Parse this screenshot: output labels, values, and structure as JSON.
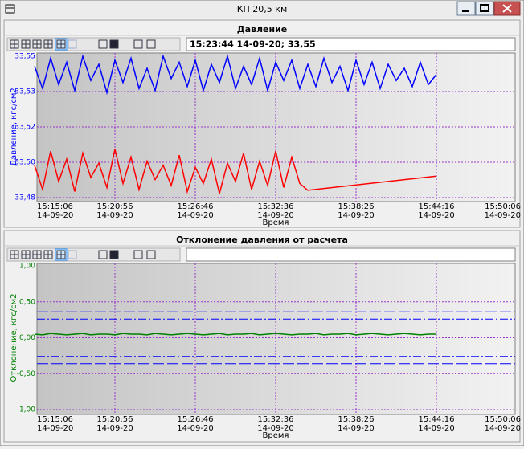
{
  "window": {
    "title": "КП 20,5 км"
  },
  "chart_data": [
    {
      "type": "line",
      "title": "Давление",
      "readout": "15:23:44 14-09-20; 33,55",
      "y_label": "Давление, кгс/см2",
      "x_label": "Время",
      "axis_color": "#0000ff",
      "grid": true,
      "xlim": [
        "15:15:06",
        "15:50:06"
      ],
      "xticks": [
        {
          "time": "15:15:06",
          "date": "14-09-20"
        },
        {
          "time": "15:20:56",
          "date": "14-09-20"
        },
        {
          "time": "15:26:46",
          "date": "14-09-20"
        },
        {
          "time": "15:32:36",
          "date": "14-09-20"
        },
        {
          "time": "15:38:26",
          "date": "14-09-20"
        },
        {
          "time": "15:44:16",
          "date": "14-09-20"
        },
        {
          "time": "15:50:06",
          "date": "14-09-20"
        }
      ],
      "ylim": [
        33.48,
        33.55
      ],
      "yticks": [
        {
          "value": 33.48,
          "label": "33,48"
        },
        {
          "value": 33.4975,
          "label": "33,50"
        },
        {
          "value": 33.515,
          "label": "33,52"
        },
        {
          "value": 33.5325,
          "label": "33,53"
        },
        {
          "value": 33.55,
          "label": "33,55"
        }
      ],
      "x": [
        "15:15:06",
        "15:15:41",
        "15:16:16",
        "15:16:51",
        "15:17:26",
        "15:18:01",
        "15:18:36",
        "15:19:11",
        "15:19:46",
        "15:20:21",
        "15:20:56",
        "15:21:31",
        "15:22:06",
        "15:22:41",
        "15:23:16",
        "15:23:51",
        "15:24:26",
        "15:25:01",
        "15:25:36",
        "15:26:11",
        "15:26:46",
        "15:27:21",
        "15:27:56",
        "15:28:31",
        "15:29:06",
        "15:29:41",
        "15:30:16",
        "15:30:51",
        "15:31:26",
        "15:32:01",
        "15:32:36",
        "15:33:11",
        "15:33:46",
        "15:34:21",
        "15:34:56",
        "15:35:31",
        "15:36:06",
        "15:36:41",
        "15:37:16",
        "15:37:51",
        "15:38:26",
        "15:39:01",
        "15:39:36",
        "15:40:11",
        "15:40:46",
        "15:41:21",
        "15:41:56",
        "15:42:31",
        "15:43:06",
        "15:43:41",
        "15:44:16"
      ],
      "series": [
        {
          "color": "#0000ff",
          "values": [
            33.545,
            33.534,
            33.549,
            33.536,
            33.547,
            33.533,
            33.55,
            33.538,
            33.546,
            33.532,
            33.548,
            33.537,
            33.549,
            33.534,
            33.544,
            33.533,
            33.55,
            33.539,
            33.547,
            33.535,
            33.548,
            33.533,
            33.546,
            33.537,
            33.55,
            33.534,
            33.545,
            33.536,
            33.549,
            33.533,
            33.547,
            33.538,
            33.548,
            33.534,
            33.546,
            33.535,
            33.549,
            33.537,
            33.545,
            33.533,
            33.548,
            33.536,
            33.547,
            33.534,
            33.546,
            33.538,
            33.544,
            33.535,
            33.547,
            33.536,
            33.541
          ]
        },
        {
          "color": "#ff0000",
          "x": [
            "15:15:06",
            "15:15:41",
            "15:16:16",
            "15:16:51",
            "15:17:26",
            "15:18:01",
            "15:18:36",
            "15:19:11",
            "15:19:46",
            "15:20:21",
            "15:20:56",
            "15:21:31",
            "15:22:06",
            "15:22:41",
            "15:23:16",
            "15:23:51",
            "15:24:26",
            "15:25:01",
            "15:25:36",
            "15:26:11",
            "15:26:46",
            "15:27:21",
            "15:27:56",
            "15:28:31",
            "15:29:06",
            "15:29:41",
            "15:30:16",
            "15:30:51",
            "15:31:26",
            "15:32:01",
            "15:32:36",
            "15:33:11",
            "15:33:46",
            "15:34:21",
            "15:34:56",
            "15:44:16"
          ],
          "values": [
            33.496,
            33.484,
            33.503,
            33.488,
            33.499,
            33.483,
            33.502,
            33.49,
            33.497,
            33.485,
            33.504,
            33.487,
            33.5,
            33.484,
            33.498,
            33.489,
            33.496,
            33.486,
            33.501,
            33.483,
            33.495,
            33.487,
            33.499,
            33.482,
            33.497,
            33.488,
            33.502,
            33.484,
            33.498,
            33.486,
            33.503,
            33.485,
            33.5,
            33.487,
            33.4836,
            33.4906
          ]
        }
      ]
    },
    {
      "type": "line",
      "title": "Отклонение давления от расчета",
      "y_label": "Отклонение, кгс/см2",
      "x_label": "Время",
      "axis_color": "#008000",
      "grid": true,
      "xlim": [
        "15:15:06",
        "15:50:06"
      ],
      "xticks": [
        {
          "time": "15:15:06",
          "date": "14-09-20"
        },
        {
          "time": "15:20:56",
          "date": "14-09-20"
        },
        {
          "time": "15:26:46",
          "date": "14-09-20"
        },
        {
          "time": "15:32:36",
          "date": "14-09-20"
        },
        {
          "time": "15:38:26",
          "date": "14-09-20"
        },
        {
          "time": "15:44:16",
          "date": "14-09-20"
        },
        {
          "time": "15:50:06",
          "date": "14-09-20"
        }
      ],
      "ylim": [
        -1,
        1
      ],
      "yticks": [
        {
          "value": -1,
          "label": "-1,00"
        },
        {
          "value": -0.5,
          "label": "-0,50"
        },
        {
          "value": 0,
          "label": "0,00"
        },
        {
          "value": 0.5,
          "label": "0,50"
        },
        {
          "value": 1,
          "label": "1,00"
        }
      ],
      "reference_lines": [
        {
          "value": 0.36,
          "color": "#0000ff",
          "dash": "14 4"
        },
        {
          "value": 0.26,
          "color": "#0000ff",
          "dash": "10 3 2 3"
        },
        {
          "value": -0.26,
          "color": "#0000ff",
          "dash": "10 3 2 3"
        },
        {
          "value": -0.36,
          "color": "#0000ff",
          "dash": "14 4"
        }
      ],
      "x": [
        "15:15:06",
        "15:15:41",
        "15:16:16",
        "15:16:51",
        "15:17:26",
        "15:18:01",
        "15:18:36",
        "15:19:11",
        "15:19:46",
        "15:20:21",
        "15:20:56",
        "15:21:31",
        "15:22:06",
        "15:22:41",
        "15:23:16",
        "15:23:51",
        "15:24:26",
        "15:25:01",
        "15:25:36",
        "15:26:11",
        "15:26:46",
        "15:27:21",
        "15:27:56",
        "15:28:31",
        "15:29:06",
        "15:29:41",
        "15:30:16",
        "15:30:51",
        "15:31:26",
        "15:32:01",
        "15:32:36",
        "15:33:11",
        "15:33:46",
        "15:34:21",
        "15:34:56",
        "15:35:31",
        "15:36:06",
        "15:36:41",
        "15:37:16",
        "15:37:51",
        "15:38:26",
        "15:39:01",
        "15:39:36",
        "15:40:11",
        "15:40:46",
        "15:41:21",
        "15:41:56",
        "15:42:31",
        "15:43:06",
        "15:43:41",
        "15:44:16"
      ],
      "series": [
        {
          "color": "#008000",
          "values": [
            0.05,
            0.04,
            0.06,
            0.05,
            0.04,
            0.05,
            0.06,
            0.04,
            0.05,
            0.05,
            0.04,
            0.06,
            0.05,
            0.05,
            0.04,
            0.06,
            0.05,
            0.04,
            0.05,
            0.06,
            0.05,
            0.04,
            0.05,
            0.06,
            0.04,
            0.05,
            0.05,
            0.06,
            0.04,
            0.05,
            0.06,
            0.05,
            0.04,
            0.05,
            0.05,
            0.06,
            0.04,
            0.05,
            0.05,
            0.06,
            0.04,
            0.05,
            0.06,
            0.05,
            0.04,
            0.05,
            0.06,
            0.05,
            0.04,
            0.05,
            0.05
          ]
        }
      ]
    }
  ]
}
